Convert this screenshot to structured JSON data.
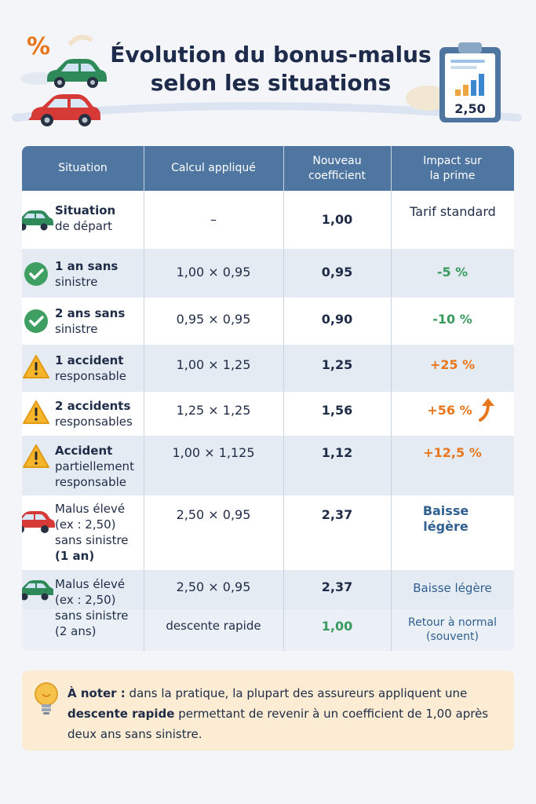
{
  "header": {
    "title_line1": "Évolution du bonus-malus",
    "title_line2": "selon les situations",
    "percent_symbol": "%",
    "clipboard_value": "2,50"
  },
  "table": {
    "columns": [
      "Situation",
      "Calcul appliqué",
      "Nouveau\ncoefficient",
      "Impact sur\nla prime"
    ],
    "rows": [
      {
        "icon": "car-green-icon",
        "sit_bold": "Situation",
        "sit_rest": "de départ",
        "calc": "–",
        "coef": "1,00",
        "impact": "Tarif standard",
        "impact_color": "#1f2c47"
      },
      {
        "icon": "check-circle-icon",
        "sit_bold": "1 an sans",
        "sit_rest": "sinistre",
        "calc": "1,00 × 0,95",
        "coef": "0,95",
        "impact": "-5 %",
        "impact_color": "#3a9a5e"
      },
      {
        "icon": "check-circle-icon",
        "sit_bold": "2 ans sans",
        "sit_rest": "sinistre",
        "calc": "0,95 × 0,95",
        "coef": "0,90",
        "impact": "-10 %",
        "impact_color": "#3a9a5e"
      },
      {
        "icon": "warning-icon",
        "sit_bold": "1 accident",
        "sit_rest": "responsable",
        "calc": "1,00 × 1,25",
        "coef": "1,25",
        "impact": "+25 %",
        "impact_color": "#e8761c"
      },
      {
        "icon": "warning-icon",
        "sit_bold": "2 accidents",
        "sit_rest": "responsables",
        "calc": "1,25 × 1,25",
        "coef": "1,56",
        "impact": "+56 %",
        "impact_color": "#e8761c"
      },
      {
        "icon": "warning-icon",
        "sit_bold": "Accident",
        "sit_rest": "partiellement responsable",
        "calc": "1,00 × 1,125",
        "coef": "1,12",
        "impact": "+12,5 %",
        "impact_color": "#e8761c"
      },
      {
        "icon": "car-red-icon",
        "sit_l1": "Malus élevé",
        "sit_l2": "(ex : 2,50)",
        "sit_l3": "sans sinistre",
        "sit_l4": "(1 an)",
        "calc": "2,50 × 0,95",
        "coef": "2,37",
        "impact": "Baisse légère",
        "impact_color": "#2f5f90"
      },
      {
        "icon": "car-green-icon",
        "sit_l1": "Malus élevé",
        "sit_l2": "(ex : 2,50)",
        "sit_l3": "sans sinistre",
        "sit_l4": "(2 ans)",
        "calc_a": "2,50 × 0,95",
        "coef_a": "2,37",
        "impact_a": "Baisse légère",
        "calc_b": "descente rapide",
        "coef_b": "1,00",
        "impact_b": "Retour à normal",
        "impact_b2": "(souvent)",
        "impact_color": "#2f5f90"
      }
    ]
  },
  "note": {
    "label": "À noter :",
    "text1": " dans la pratique, la plupart des assureurs appliquent une ",
    "emph": "descente rapide",
    "text2": " permettant de revenir à un coefficient de 1,00 après deux ans sans sinistre."
  },
  "colors": {
    "header_blue": "#4f76a0",
    "row_alt": "#e4ebf3",
    "green": "#3a9a5e",
    "orange": "#e8761c",
    "note_bg": "#fbecd3"
  }
}
